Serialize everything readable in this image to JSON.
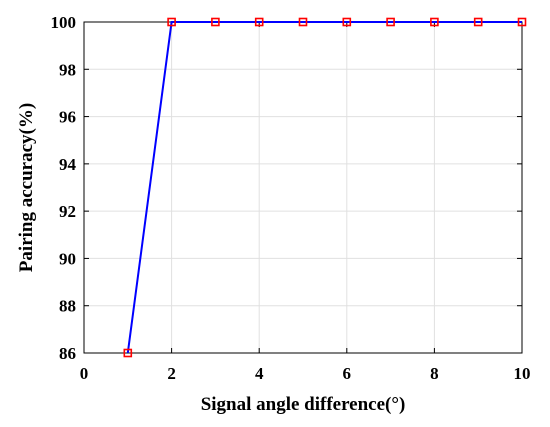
{
  "chart_data": {
    "type": "line",
    "title": "",
    "xlabel": "Signal angle difference(°)",
    "ylabel": "Pairing accuracy(%)",
    "xlim": [
      0,
      10
    ],
    "ylim": [
      86,
      100
    ],
    "xticks": [
      0,
      2,
      4,
      6,
      8,
      10
    ],
    "yticks": [
      86,
      88,
      90,
      92,
      94,
      96,
      98,
      100
    ],
    "grid": true,
    "legend": "none",
    "series": [
      {
        "x": [
          1,
          2,
          3,
          4,
          5,
          6,
          7,
          8,
          9,
          10
        ],
        "y": [
          86,
          100,
          100,
          100,
          100,
          100,
          100,
          100,
          100,
          100
        ],
        "line_color": "#0000ff",
        "marker": "square",
        "marker_color": "#ff0000"
      }
    ]
  }
}
